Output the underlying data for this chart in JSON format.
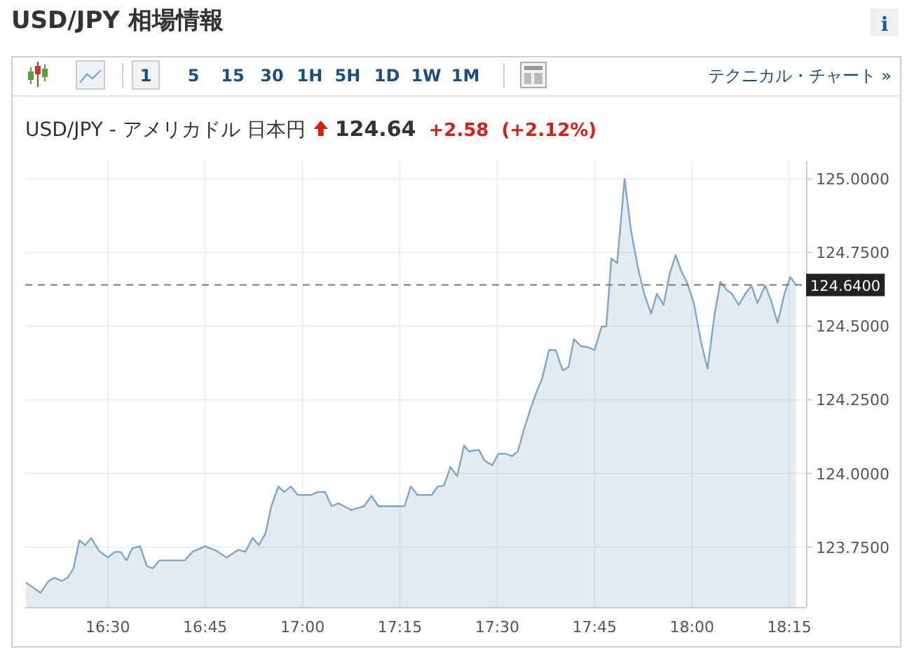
{
  "chart_data": {
    "type": "area",
    "title": "USD/JPY 相場情報",
    "subtitle": "USD/JPY - アメリカドル 日本円",
    "annotations": [
      "124.64",
      "+2.58",
      "(+2.12%)",
      "15",
      "30",
      "1H",
      "5H",
      "1D",
      "1W",
      "1M",
      "1",
      "5",
      "テクニカル・チャート »",
      "i"
    ],
    "xlim": [
      16.288,
      18.293
    ],
    "ylim": [
      123.547,
      125.06
    ],
    "xticks": [
      {
        "value": 16.5,
        "label": "16:30"
      },
      {
        "value": 16.75,
        "label": "16:45"
      },
      {
        "value": 17,
        "label": "17:00"
      },
      {
        "value": 17.25,
        "label": "17:15"
      },
      {
        "value": 17.5,
        "label": "17:30"
      },
      {
        "value": 17.75,
        "label": "17:45"
      },
      {
        "value": 18,
        "label": "18:00"
      },
      {
        "value": 18.25,
        "label": "18:15"
      }
    ],
    "yticks": [
      {
        "value": 123.75,
        "label": "123.7500"
      },
      {
        "value": 124,
        "label": "124.0000"
      },
      {
        "value": 124.25,
        "label": "124.2500"
      },
      {
        "value": 124.5,
        "label": "124.5000"
      },
      {
        "value": 124.75,
        "label": "124.7500"
      },
      {
        "value": 125,
        "label": "125.0000"
      }
    ],
    "grid": true,
    "marker": "none",
    "line_style": "solid",
    "ref_lines": [
      {
        "axis": "y",
        "value": 124.64,
        "label": "124.6400",
        "color": "#777777",
        "line_style": "dashed"
      }
    ],
    "series": [
      {
        "color": "#7fa6c9",
        "x": [
          16.29,
          16.327,
          16.348,
          16.363,
          16.382,
          16.397,
          16.412,
          16.427,
          16.442,
          16.457,
          16.478,
          16.5,
          16.518,
          16.533,
          16.548,
          16.563,
          16.583,
          16.6,
          16.615,
          16.633,
          16.698,
          16.717,
          16.75,
          16.78,
          16.805,
          16.835,
          16.853,
          16.872,
          16.888,
          16.905,
          16.92,
          16.938,
          16.953,
          16.97,
          16.988,
          17.022,
          17.038,
          17.058,
          17.075,
          17.092,
          17.125,
          17.158,
          17.177,
          17.195,
          17.262,
          17.278,
          17.295,
          17.332,
          17.347,
          17.363,
          17.38,
          17.397,
          17.415,
          17.427,
          17.453,
          17.468,
          17.487,
          17.503,
          17.522,
          17.538,
          17.553,
          17.568,
          17.585,
          17.602,
          17.615,
          17.633,
          17.65,
          17.668,
          17.683,
          17.697,
          17.715,
          17.732,
          17.75,
          17.768,
          17.78,
          17.793,
          17.808,
          17.827,
          17.843,
          17.862,
          17.878,
          17.895,
          17.91,
          17.927,
          17.942,
          17.958,
          17.973,
          17.988,
          18.005,
          18.023,
          18.04,
          18.058,
          18.073,
          18.09,
          18.102,
          18.12,
          18.137,
          18.153,
          18.168,
          18.188,
          18.202,
          18.22,
          18.237,
          18.252,
          18.267
        ],
        "values": [
          123.63,
          123.595,
          123.635,
          123.646,
          123.635,
          123.646,
          123.678,
          123.773,
          123.757,
          123.781,
          123.737,
          123.715,
          123.734,
          123.734,
          123.705,
          123.746,
          123.753,
          123.686,
          123.678,
          123.705,
          123.705,
          123.734,
          123.753,
          123.737,
          123.715,
          123.741,
          123.734,
          123.781,
          123.757,
          123.797,
          123.889,
          123.956,
          123.937,
          123.956,
          123.927,
          123.927,
          123.937,
          123.937,
          123.889,
          123.899,
          123.876,
          123.889,
          123.924,
          123.889,
          123.889,
          123.956,
          123.927,
          123.927,
          123.956,
          123.959,
          124.022,
          123.991,
          124.095,
          124.075,
          124.08,
          124.043,
          124.028,
          124.067,
          124.067,
          124.059,
          124.075,
          124.147,
          124.218,
          124.281,
          124.321,
          124.419,
          124.419,
          124.35,
          124.361,
          124.456,
          124.432,
          124.429,
          124.419,
          124.499,
          124.499,
          124.73,
          124.714,
          125.0,
          124.829,
          124.694,
          124.607,
          124.543,
          124.61,
          124.572,
          124.673,
          124.741,
          124.686,
          124.646,
          124.578,
          124.448,
          124.356,
          124.54,
          124.651,
          124.622,
          124.611,
          124.572,
          124.61,
          124.638,
          124.578,
          124.638,
          124.591,
          124.511,
          124.607,
          124.667,
          124.641
        ]
      }
    ]
  }
}
